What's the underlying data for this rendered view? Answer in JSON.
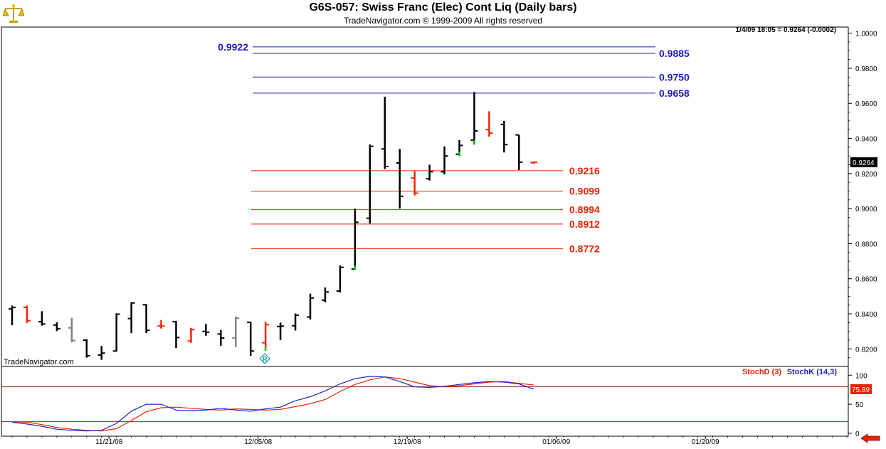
{
  "header": {
    "title": "G6S-057:  Swiss Franc (Elec) Cont Liq  (Daily bars)",
    "copyright": "TradeNavigator.com © 1999-2009 All rights reserved",
    "readout": "1/4/09 18:05 = 0.9264 (-0.0002)",
    "watermark": "TradeNavigator.com"
  },
  "icons": {
    "logo": "scales-logo-icon",
    "nav": "left-arrow-icon",
    "marker": "r-diamond-marker-icon"
  },
  "colors": {
    "up_bar": "#000000",
    "down_bar": "#ff2200",
    "gray_bar": "#808080",
    "green_close": "#00cc00",
    "blue_level": "#1a1acc",
    "red_level": "#e62200",
    "stoch_d": "#e62200",
    "stoch_k": "#2222cc"
  },
  "chart_data": [
    {
      "type": "ohlc",
      "title": "G6S-057:  Swiss Franc (Elec) Cont Liq  (Daily bars)",
      "ylim": [
        0.81,
        1.0035
      ],
      "y_ticks": [
        "1.0000",
        "0.9800",
        "0.9600",
        "0.9400",
        "0.9200",
        "0.9000",
        "0.8800",
        "0.8600",
        "0.8400",
        "0.8200"
      ],
      "x_ticks": [
        {
          "label": "11/21/08",
          "bar": 6.5
        },
        {
          "label": "12/05/08",
          "bar": 16.5
        },
        {
          "label": "12/19/08",
          "bar": 26.5
        },
        {
          "label": "01/06/09",
          "bar": 36.5
        },
        {
          "label": "01/20/09",
          "bar": 46.5
        }
      ],
      "last_price": "0.9264",
      "bars": [
        {
          "o": 0.8428,
          "h": 0.8447,
          "l": 0.8335,
          "c": 0.8437,
          "col": "up"
        },
        {
          "o": 0.8437,
          "h": 0.8448,
          "l": 0.8348,
          "c": 0.8361,
          "col": "down"
        },
        {
          "o": 0.8355,
          "h": 0.8415,
          "l": 0.8333,
          "c": 0.8342,
          "col": "up"
        },
        {
          "o": 0.8336,
          "h": 0.8352,
          "l": 0.8302,
          "c": 0.8315,
          "col": "up"
        },
        {
          "o": 0.832,
          "h": 0.8377,
          "l": 0.8238,
          "c": 0.8248,
          "col": "gray"
        },
        {
          "o": 0.825,
          "h": 0.8255,
          "l": 0.815,
          "c": 0.8161,
          "col": "up"
        },
        {
          "o": 0.8165,
          "h": 0.8217,
          "l": 0.8138,
          "c": 0.8176,
          "col": "up"
        },
        {
          "o": 0.8188,
          "h": 0.8403,
          "l": 0.8185,
          "c": 0.8398,
          "col": "up"
        },
        {
          "o": 0.8373,
          "h": 0.8466,
          "l": 0.829,
          "c": 0.8462,
          "col": "up"
        },
        {
          "o": 0.8452,
          "h": 0.8455,
          "l": 0.829,
          "c": 0.8306,
          "col": "up"
        },
        {
          "o": 0.8331,
          "h": 0.8365,
          "l": 0.8316,
          "c": 0.833,
          "col": "down"
        },
        {
          "o": 0.8355,
          "h": 0.836,
          "l": 0.8205,
          "c": 0.8265,
          "col": "up"
        },
        {
          "o": 0.8245,
          "h": 0.832,
          "l": 0.8235,
          "c": 0.831,
          "col": "down"
        },
        {
          "o": 0.83,
          "h": 0.8342,
          "l": 0.8275,
          "c": 0.8295,
          "col": "up"
        },
        {
          "o": 0.8285,
          "h": 0.8307,
          "l": 0.8218,
          "c": 0.8262,
          "col": "up"
        },
        {
          "o": 0.8262,
          "h": 0.8385,
          "l": 0.821,
          "c": 0.8375,
          "col": "gray"
        },
        {
          "o": 0.8352,
          "h": 0.8353,
          "l": 0.816,
          "c": 0.8188,
          "col": "up"
        },
        {
          "o": 0.8235,
          "h": 0.8355,
          "l": 0.819,
          "c": 0.8338,
          "col": "down",
          "green": true
        },
        {
          "o": 0.8328,
          "h": 0.835,
          "l": 0.825,
          "c": 0.833,
          "col": "up"
        },
        {
          "o": 0.8332,
          "h": 0.8402,
          "l": 0.8305,
          "c": 0.8392,
          "col": "up"
        },
        {
          "o": 0.8382,
          "h": 0.8515,
          "l": 0.8368,
          "c": 0.849,
          "col": "up"
        },
        {
          "o": 0.8478,
          "h": 0.855,
          "l": 0.8465,
          "c": 0.8525,
          "col": "up"
        },
        {
          "o": 0.853,
          "h": 0.8675,
          "l": 0.8522,
          "c": 0.8665,
          "col": "up"
        },
        {
          "o": 0.8655,
          "h": 0.9,
          "l": 0.865,
          "c": 0.8922,
          "col": "up",
          "green": true
        },
        {
          "o": 0.8945,
          "h": 0.9365,
          "l": 0.8915,
          "c": 0.9355,
          "col": "up"
        },
        {
          "o": 0.934,
          "h": 0.9638,
          "l": 0.9225,
          "c": 0.924,
          "col": "up"
        },
        {
          "o": 0.926,
          "h": 0.934,
          "l": 0.9,
          "c": 0.907,
          "col": "up"
        },
        {
          "o": 0.9175,
          "h": 0.9215,
          "l": 0.9075,
          "c": 0.9088,
          "col": "down"
        },
        {
          "o": 0.917,
          "h": 0.925,
          "l": 0.916,
          "c": 0.921,
          "col": "up"
        },
        {
          "o": 0.921,
          "h": 0.9355,
          "l": 0.9195,
          "c": 0.93,
          "col": "up"
        },
        {
          "o": 0.931,
          "h": 0.939,
          "l": 0.93,
          "c": 0.936,
          "col": "up",
          "green": true
        },
        {
          "o": 0.939,
          "h": 0.9665,
          "l": 0.9365,
          "c": 0.9443,
          "col": "up",
          "green": true
        },
        {
          "o": 0.945,
          "h": 0.9555,
          "l": 0.941,
          "c": 0.943,
          "col": "down"
        },
        {
          "o": 0.948,
          "h": 0.95,
          "l": 0.932,
          "c": 0.9365,
          "col": "up"
        },
        {
          "o": 0.942,
          "h": 0.942,
          "l": 0.922,
          "c": 0.9265,
          "col": "up"
        },
        {
          "o": 0.9262,
          "h": 0.9269,
          "l": 0.9255,
          "c": 0.9264,
          "col": "down"
        }
      ],
      "levels": [
        {
          "value": 0.9922,
          "label": "0.9922",
          "color": "blue",
          "label_side": "left"
        },
        {
          "value": 0.9885,
          "label": "0.9885",
          "color": "blue",
          "label_side": "right"
        },
        {
          "value": 0.975,
          "label": "0.9750",
          "color": "blue",
          "label_side": "right"
        },
        {
          "value": 0.9658,
          "label": "0.9658",
          "color": "blue",
          "label_side": "right"
        },
        {
          "value": 0.9216,
          "label": "0.9216",
          "color": "red",
          "label_side": "right"
        },
        {
          "value": 0.9099,
          "label": "0.9099",
          "color": "red",
          "label_side": "right"
        },
        {
          "value": 0.8994,
          "label": "0.8994",
          "color": "red",
          "label_side": "right"
        },
        {
          "value": 0.8912,
          "label": "0.8912",
          "color": "red",
          "label_side": "right"
        },
        {
          "value": 0.8772,
          "label": "0.8772",
          "color": "red",
          "label_side": "right"
        }
      ]
    },
    {
      "type": "line",
      "legend": [
        "StochD (3)",
        "StochK (14,3)"
      ],
      "ylim": [
        -5,
        115
      ],
      "y_ticks": [
        "100",
        "50",
        "0"
      ],
      "reference_lines": [
        80,
        20
      ],
      "last_value": "75.89",
      "series": [
        {
          "name": "StochD (3)",
          "values": [
            20,
            19,
            15,
            10,
            7,
            5,
            4,
            8,
            22,
            37,
            44,
            45,
            43,
            41,
            40,
            42,
            41,
            40,
            41,
            46,
            51,
            58,
            72,
            84,
            92,
            97,
            94,
            88,
            82,
            80,
            82,
            85,
            88,
            89,
            86,
            83
          ]
        },
        {
          "name": "StochK (14,3)",
          "values": [
            19,
            16,
            12,
            7,
            5,
            4,
            5,
            17,
            38,
            50,
            50,
            40,
            39,
            40,
            43,
            40,
            38,
            42,
            45,
            56,
            63,
            73,
            85,
            94,
            98,
            97,
            89,
            80,
            79,
            81,
            84,
            87,
            89,
            88,
            85,
            76
          ]
        }
      ]
    }
  ]
}
